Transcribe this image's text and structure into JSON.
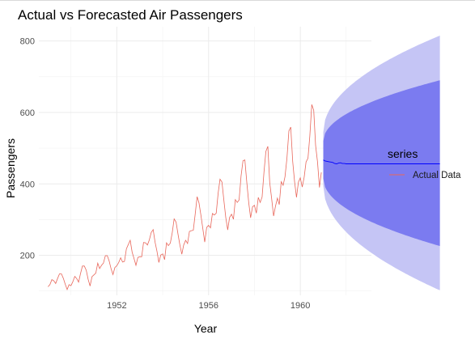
{
  "chart_data": {
    "type": "line",
    "title": "Actual vs Forecasted Air Passengers",
    "xlabel": "Year",
    "ylabel": "Passengers",
    "xlim": [
      1948.6,
      1963.1
    ],
    "ylim": [
      88,
      840
    ],
    "x_ticks": [
      1952,
      1956,
      1960
    ],
    "y_ticks": [
      200,
      400,
      600,
      800
    ],
    "grid": true,
    "legend": {
      "title": "series",
      "position": "right",
      "entries": [
        "Actual Data"
      ]
    },
    "series": [
      {
        "name": "Actual Data",
        "color": "#e8675b",
        "start": 1949.0,
        "step_months": 1,
        "values": [
          112,
          118,
          132,
          129,
          121,
          135,
          148,
          148,
          136,
          119,
          104,
          118,
          115,
          126,
          141,
          135,
          125,
          149,
          170,
          170,
          158,
          133,
          114,
          140,
          145,
          150,
          178,
          163,
          172,
          178,
          199,
          199,
          184,
          162,
          146,
          166,
          171,
          180,
          193,
          181,
          183,
          218,
          230,
          242,
          209,
          191,
          172,
          194,
          196,
          196,
          236,
          235,
          229,
          243,
          264,
          272,
          237,
          211,
          180,
          201,
          204,
          188,
          235,
          227,
          234,
          264,
          302,
          293,
          259,
          229,
          203,
          229,
          242,
          233,
          267,
          269,
          270,
          315,
          364,
          347,
          312,
          274,
          237,
          278,
          284,
          277,
          317,
          313,
          318,
          374,
          413,
          405,
          355,
          306,
          271,
          306,
          315,
          301,
          356,
          348,
          355,
          422,
          465,
          467,
          404,
          347,
          305,
          336,
          340,
          318,
          362,
          348,
          363,
          435,
          491,
          505,
          404,
          359,
          310,
          337,
          360,
          342,
          406,
          396,
          420,
          472,
          548,
          559,
          463,
          407,
          362,
          405,
          417,
          391,
          419,
          461,
          472,
          535,
          622,
          606,
          508,
          461,
          390,
          432
        ]
      },
      {
        "role": "forecast",
        "color": "#0000ff",
        "start": 1961.0,
        "step_months": 1,
        "values": [
          467,
          464,
          463,
          462,
          461,
          460,
          457,
          456,
          458,
          459,
          457,
          457,
          456,
          456,
          456,
          456,
          456,
          456,
          456,
          456,
          456,
          456,
          456,
          456,
          456,
          456,
          456,
          456,
          456,
          456,
          456,
          456,
          456,
          456,
          456,
          456,
          456,
          456,
          456,
          456,
          456,
          456,
          456,
          456,
          456,
          456,
          456,
          456,
          456,
          456,
          456,
          456,
          456,
          456,
          456,
          456,
          456,
          456,
          456,
          456,
          456,
          456
        ],
        "band_80": {
          "color": "#7b7bf0",
          "upper_at_end": 690,
          "lower_at_end": 226,
          "upper_at_start": 520,
          "lower_at_start": 415
        },
        "band_95": {
          "color": "#c5c5f5",
          "upper_at_end": 815,
          "lower_at_end": 102,
          "upper_at_start": 545,
          "lower_at_start": 395
        }
      }
    ]
  }
}
